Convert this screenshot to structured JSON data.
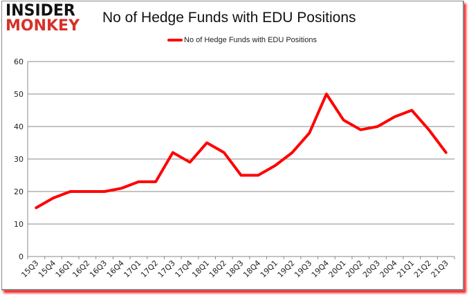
{
  "header": {
    "logo_line1": "INSIDER",
    "logo_line2": "MONKEY",
    "title": "No of Hedge Funds with EDU Positions"
  },
  "legend": {
    "label": "No of Hedge Funds with EDU Positions",
    "color": "#ff0000"
  },
  "chart_data": {
    "type": "line",
    "title": "No of Hedge Funds with EDU Positions",
    "xlabel": "",
    "ylabel": "",
    "ylim": [
      0,
      60
    ],
    "yticks": [
      0,
      10,
      20,
      30,
      40,
      50,
      60
    ],
    "grid": true,
    "legend_position": "top",
    "categories": [
      "15Q3",
      "15Q4",
      "16Q1",
      "16Q2",
      "16Q3",
      "16Q4",
      "17Q1",
      "17Q2",
      "17Q3",
      "17Q4",
      "18Q1",
      "18Q2",
      "18Q3",
      "18Q4",
      "19Q1",
      "19Q2",
      "19Q3",
      "19Q4",
      "20Q1",
      "20Q2",
      "20Q3",
      "20Q4",
      "21Q1",
      "21Q2",
      "21Q3"
    ],
    "series": [
      {
        "name": "No of Hedge Funds with EDU Positions",
        "color": "#ff0000",
        "values": [
          15,
          18,
          20,
          20,
          20,
          21,
          23,
          23,
          32,
          29,
          35,
          32,
          25,
          25,
          28,
          32,
          38,
          50,
          42,
          39,
          40,
          43,
          45,
          39,
          32
        ]
      }
    ]
  }
}
